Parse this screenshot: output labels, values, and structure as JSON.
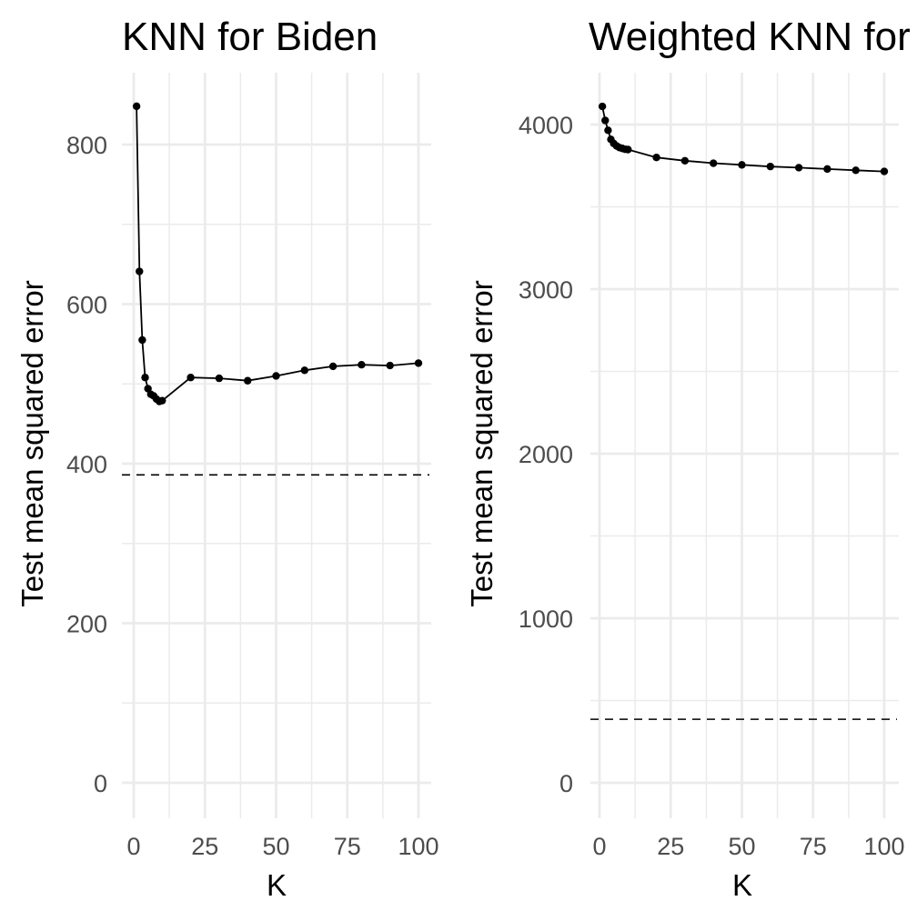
{
  "chart_data": [
    {
      "type": "line",
      "title": "KNN for Biden",
      "xlabel": "K",
      "ylabel": "Test mean squared error",
      "xlim": [
        0,
        100
      ],
      "ylim": [
        0,
        850
      ],
      "x_ticks": [
        0,
        25,
        50,
        75,
        100
      ],
      "x_tick_labels": [
        "0",
        "25",
        "50",
        "75",
        "100"
      ],
      "y_ticks": [
        0,
        200,
        400,
        600,
        800
      ],
      "y_tick_labels": [
        "0",
        "200",
        "400",
        "600",
        "800"
      ],
      "grid": true,
      "series": [
        {
          "x": [
            1,
            2,
            3,
            4,
            5,
            6,
            7,
            8,
            9,
            10,
            20,
            30,
            40,
            50,
            60,
            70,
            80,
            90,
            100
          ],
          "values": [
            848,
            641,
            555,
            508,
            494,
            487,
            485,
            481,
            478,
            479,
            508,
            507,
            504,
            510,
            517,
            522,
            524,
            523,
            526
          ]
        }
      ],
      "reference_lines": [
        {
          "y": 386,
          "style": "dashed"
        }
      ]
    },
    {
      "type": "line",
      "title": "Weighted KNN for Biden",
      "xlabel": "K",
      "ylabel": "Test mean squared error",
      "xlim": [
        0,
        100
      ],
      "ylim": [
        0,
        4100
      ],
      "x_ticks": [
        0,
        25,
        50,
        75,
        100
      ],
      "x_tick_labels": [
        "0",
        "25",
        "50",
        "75",
        "100"
      ],
      "y_ticks": [
        0,
        1000,
        2000,
        3000,
        4000
      ],
      "y_tick_labels": [
        "0",
        "1000",
        "2000",
        "3000",
        "4000"
      ],
      "grid": true,
      "series": [
        {
          "x": [
            1,
            2,
            3,
            4,
            5,
            6,
            7,
            8,
            9,
            10,
            20,
            30,
            40,
            50,
            60,
            70,
            80,
            90,
            100
          ],
          "values": [
            4110,
            4025,
            3965,
            3910,
            3885,
            3870,
            3860,
            3855,
            3850,
            3848,
            3800,
            3780,
            3765,
            3755,
            3745,
            3738,
            3730,
            3722,
            3715
          ]
        }
      ],
      "reference_lines": [
        {
          "y": 386,
          "style": "dashed"
        }
      ]
    }
  ]
}
